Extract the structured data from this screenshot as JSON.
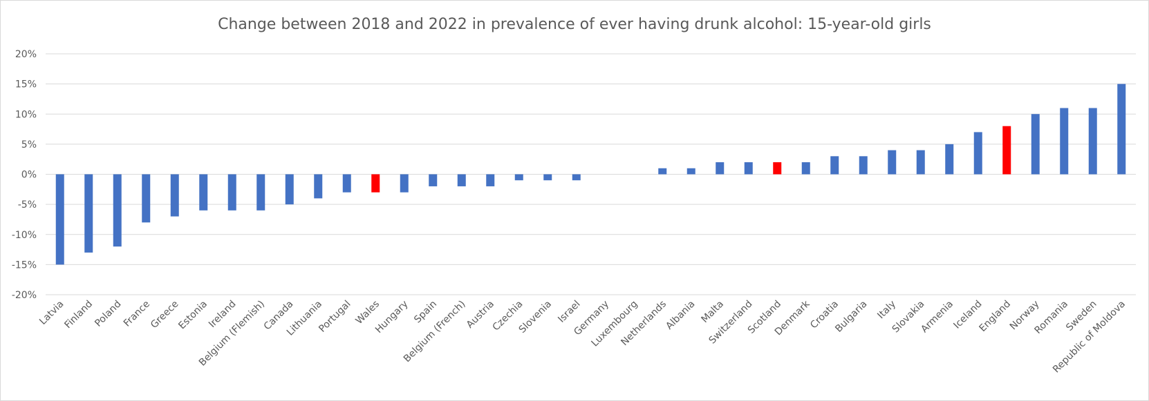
{
  "chart_data": {
    "type": "bar",
    "title": "Change between 2018 and 2022 in prevalence of ever having drunk alcohol: 15-year-old girls",
    "xlabel": "",
    "ylabel": "",
    "ylim": [
      -20,
      20
    ],
    "yticks": [
      "20%",
      "15%",
      "10%",
      "5%",
      "0%",
      "-5%",
      "-10%",
      "-15%",
      "-20%"
    ],
    "ytick_values": [
      20,
      15,
      10,
      5,
      0,
      -5,
      -10,
      -15,
      -20
    ],
    "grid": true,
    "legend": "none",
    "default_color": "#4472C4",
    "highlight_color": "#FF0000",
    "categories": [
      "Latvia",
      "Finland",
      "Poland",
      "France",
      "Greece",
      "Estonia",
      "Ireland",
      "Belgium (Flemish)",
      "Canada",
      "Lithuania",
      "Portugal",
      "Wales",
      "Hungary",
      "Spain",
      "Belgium (French)",
      "Austria",
      "Czechia",
      "Slovenia",
      "Israel",
      "Germany",
      "Luxembourg",
      "Netherlands",
      "Albania",
      "Malta",
      "Switzerland",
      "Scotland",
      "Denmark",
      "Croatia",
      "Bulgaria",
      "Italy",
      "Slovakia",
      "Armenia",
      "Iceland",
      "England",
      "Norway",
      "Romania",
      "Sweden",
      "Republic of Moldova"
    ],
    "values": [
      -15,
      -13,
      -12,
      -8,
      -7,
      -6,
      -6,
      -6,
      -5,
      -4,
      -3,
      -3,
      -3,
      -2,
      -2,
      -2,
      -1,
      -1,
      -1,
      0,
      0,
      1,
      1,
      2,
      2,
      2,
      2,
      3,
      3,
      4,
      4,
      5,
      7,
      8,
      10,
      11,
      11,
      15
    ],
    "highlighted": [
      "Wales",
      "Scotland",
      "England"
    ]
  }
}
